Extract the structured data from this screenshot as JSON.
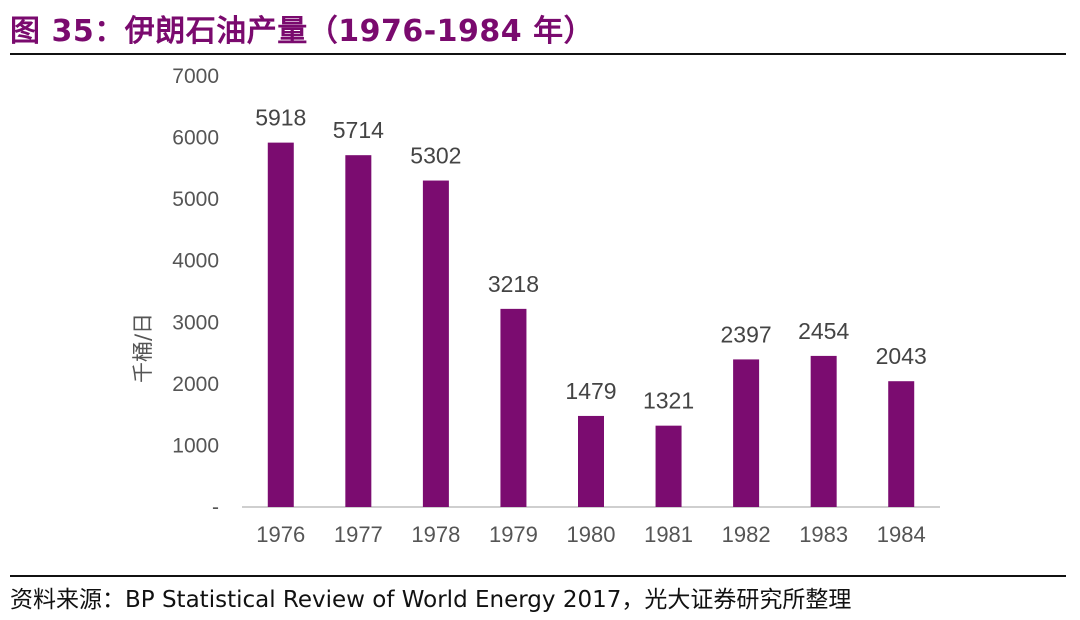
{
  "figure": {
    "title": "图 35：伊朗石油产量（1976-1984 年）",
    "source": "资料来源：BP Statistical Review of World Energy 2017，光大证券研究所整理"
  },
  "colors": {
    "bar": "#7b0c70",
    "title": "#7a0a6e",
    "axis": "#bfbfbf",
    "tick_text": "#555555",
    "label_text": "#444444"
  },
  "chart_data": {
    "type": "bar",
    "title": "",
    "xlabel": "",
    "ylabel": "千桶/日",
    "categories": [
      "1976",
      "1977",
      "1978",
      "1979",
      "1980",
      "1981",
      "1982",
      "1983",
      "1984"
    ],
    "values": [
      5918,
      5714,
      5302,
      3218,
      1479,
      1321,
      2397,
      2454,
      2043
    ],
    "ylim": [
      0,
      7000
    ],
    "yticks": [
      "-",
      "1000",
      "2000",
      "3000",
      "4000",
      "5000",
      "6000",
      "7000"
    ],
    "data_labels": [
      "5918",
      "5714",
      "5302",
      "3218",
      "1479",
      "1321",
      "2397",
      "2454",
      "2043"
    ],
    "grid": false,
    "legend": "none"
  }
}
